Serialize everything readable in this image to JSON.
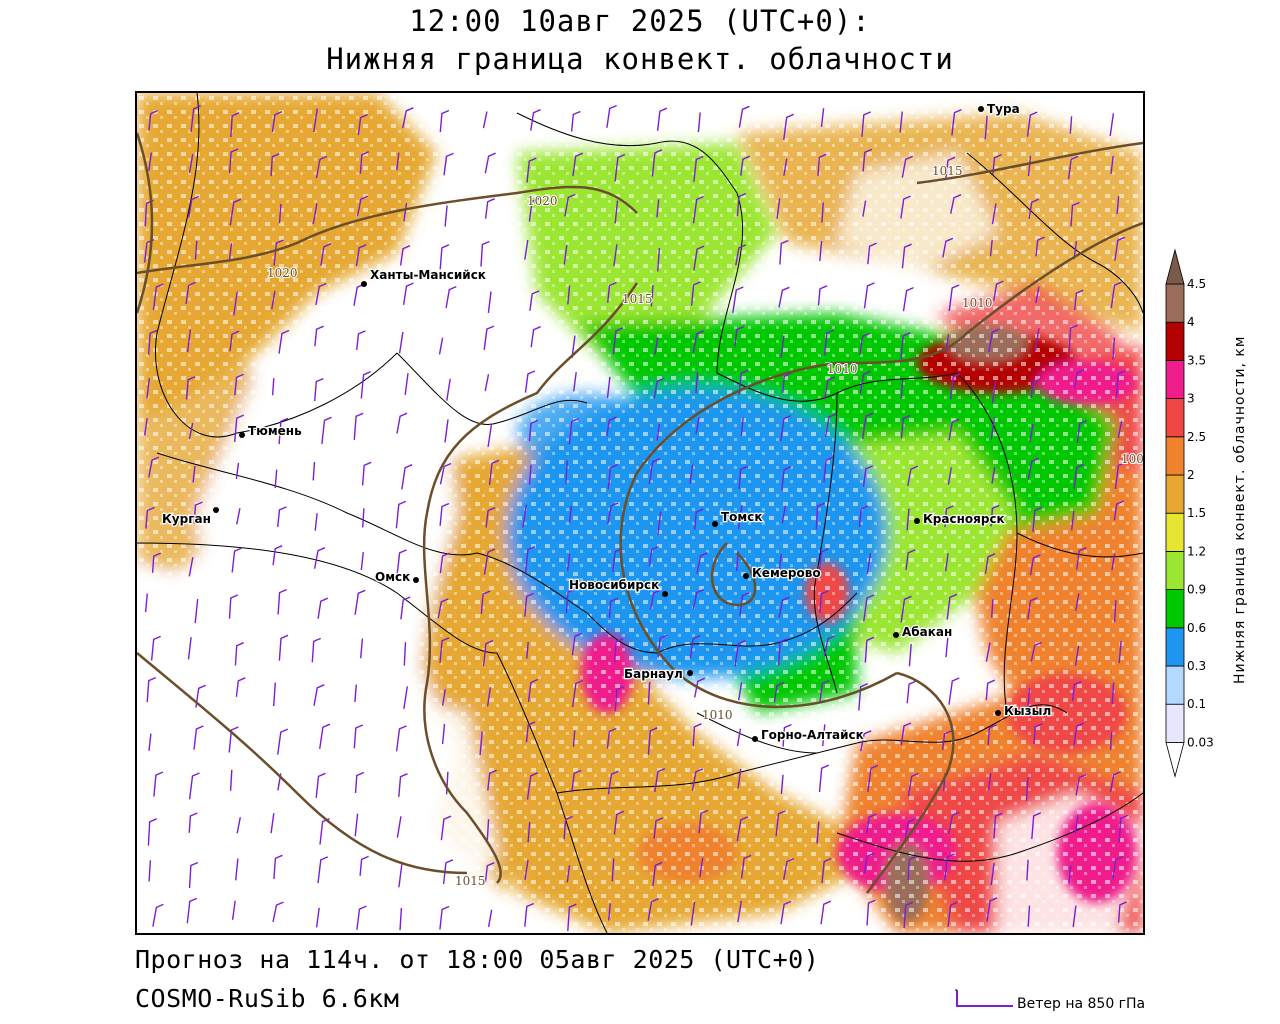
{
  "header": {
    "title_line1": "12:00 10авг 2025 (UTC+0):",
    "title_line2": "Нижняя граница конвект. облачности"
  },
  "footer": {
    "forecast": "Прогноз на 114ч. от 18:00 05авг 2025 (UTC+0)",
    "model": "COSMO-RuSib 6.6км",
    "wind_legend": "Ветер на 850 гПа"
  },
  "colorbar": {
    "title": "Нижняя граница конвект. облачности, км",
    "ticks": [
      "0.03",
      "0.1",
      "0.3",
      "0.6",
      "0.9",
      "1.2",
      "1.5",
      "2",
      "2.5",
      "3",
      "3.5",
      "4",
      "4.5"
    ],
    "colors": [
      "#ffffff",
      "#e6e6ff",
      "#b3d9ff",
      "#1e96f0",
      "#00c800",
      "#9be632",
      "#e6e632",
      "#e6a832",
      "#f0822d",
      "#f04646",
      "#f01e8c",
      "#b40000",
      "#9a6e5a",
      "#7a5a4a"
    ]
  },
  "map": {
    "cities": [
      {
        "name": "Тура"
      },
      {
        "name": "Ханты-Мансийск"
      },
      {
        "name": "Тюмень"
      },
      {
        "name": "Курган"
      },
      {
        "name": "Омск"
      },
      {
        "name": "Новосибирск"
      },
      {
        "name": "Томск"
      },
      {
        "name": "Кемерово"
      },
      {
        "name": "Красноярск"
      },
      {
        "name": "Абакан"
      },
      {
        "name": "Барнаул"
      },
      {
        "name": "Горно-Алтайск"
      },
      {
        "name": "Кызыл"
      }
    ],
    "isobars": [
      "1020",
      "1020",
      "1015",
      "1015",
      "1010",
      "1010",
      "1010",
      "1015",
      "100"
    ],
    "colors": {
      "isobar": "#6b4e2a",
      "wind_barb": "#7a1fd6",
      "border": "#000000"
    }
  }
}
